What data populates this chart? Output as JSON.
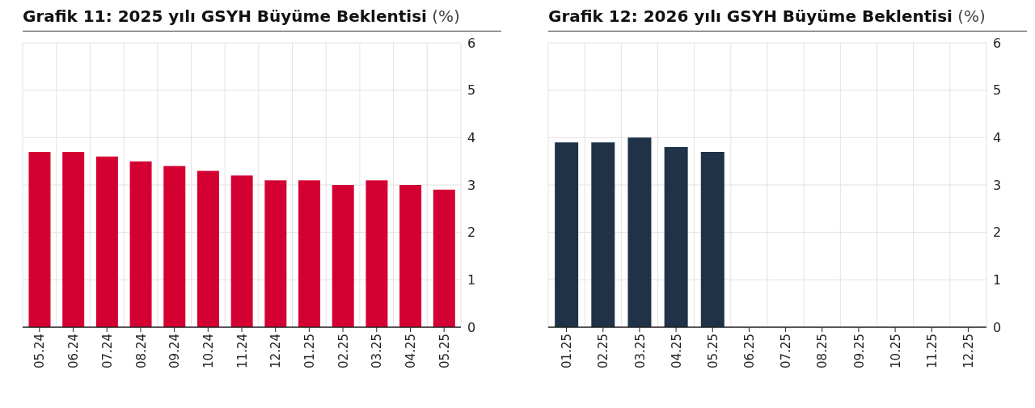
{
  "chart_data": [
    {
      "type": "bar",
      "title": "Grafik 11: 2025 yılı GSYH Büyüme Beklentisi",
      "ylabel": "(%)",
      "categories": [
        "05.24",
        "06.24",
        "07.24",
        "08.24",
        "09.24",
        "10.24",
        "11.24",
        "12.24",
        "01.25",
        "02.25",
        "03.25",
        "04.25",
        "05.25"
      ],
      "values": [
        3.7,
        3.7,
        3.6,
        3.5,
        3.4,
        3.3,
        3.2,
        3.1,
        3.1,
        3.0,
        3.1,
        3.0,
        2.9
      ],
      "color": "#d50032",
      "ylim": [
        0,
        6
      ],
      "yticks": [
        0,
        1,
        2,
        3,
        4,
        5,
        6
      ],
      "grid": true
    },
    {
      "type": "bar",
      "title": "Grafik 12: 2026 yılı GSYH Büyüme Beklentisi",
      "ylabel": "(%)",
      "categories": [
        "01.25",
        "02.25",
        "03.25",
        "04.25",
        "05.25",
        "06.25",
        "07.25",
        "08.25",
        "09.25",
        "10.25",
        "11.25",
        "12.25"
      ],
      "values": [
        3.9,
        3.9,
        4.0,
        3.8,
        3.7,
        null,
        null,
        null,
        null,
        null,
        null,
        null
      ],
      "color": "#1f3247",
      "ylim": [
        0,
        6
      ],
      "yticks": [
        0,
        1,
        2,
        3,
        4,
        5,
        6
      ],
      "grid": true
    }
  ]
}
